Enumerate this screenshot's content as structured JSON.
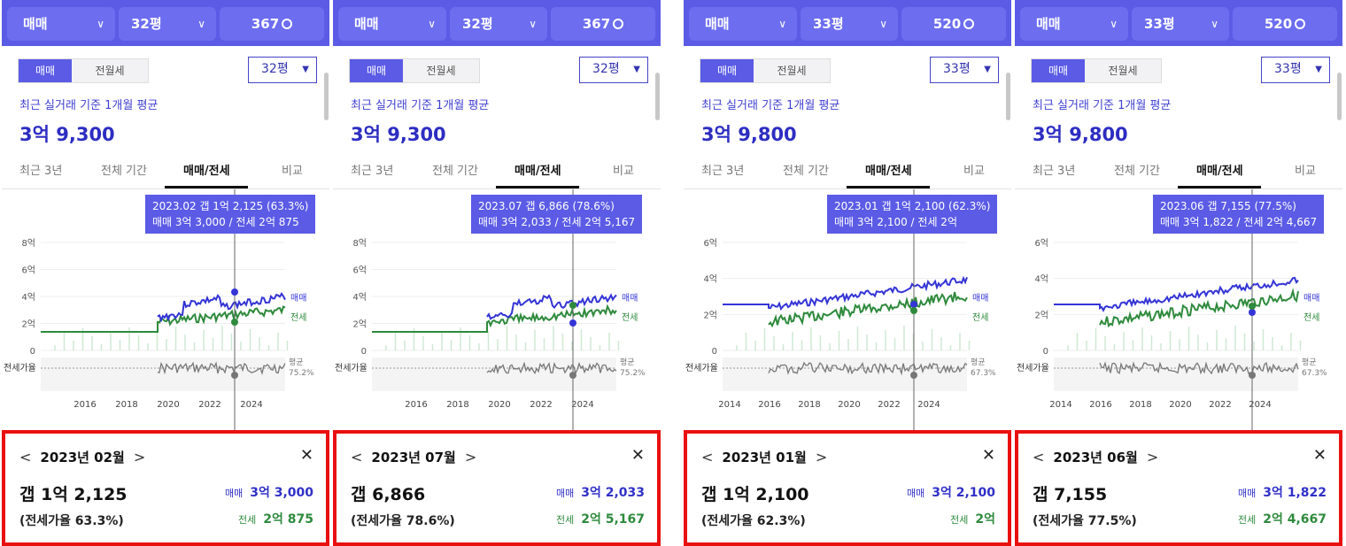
{
  "colors": {
    "accent": "#5b5be6",
    "sale_line": "#3434d6",
    "rent_line": "#2e8a3c",
    "ratio_line": "#777777",
    "highlight_border": "#e8110f"
  },
  "icons": {
    "dropdown": "chevron-down-icon",
    "search": "search-icon",
    "prev": "chevron-left-icon",
    "next": "chevron-right-icon",
    "close": "close-icon"
  },
  "panels": [
    {
      "topbar": {
        "type": "매매",
        "size": "32평",
        "count": "367"
      },
      "toggle": {
        "active": "매매",
        "inactive": "전월세"
      },
      "size_select": "32평",
      "avg_label": "최근 실거래 기준 1개월 평균",
      "avg_value": "3억 9,300",
      "tabs": [
        "최근 3년",
        "전체 기간",
        "매매/전세",
        "비교"
      ],
      "tooltip": {
        "line1": "2023.02  갭 1억 2,125 (63.3%)",
        "line2": "매매 3억 3,000 / 전세 2억 875"
      },
      "chart": {
        "y_labels": [
          "8억",
          "6억",
          "4억",
          "2억",
          "0"
        ],
        "x_labels": [
          "2016",
          "2018",
          "2020",
          "2022",
          "2024"
        ],
        "sale_label": "매매",
        "rent_label": "전세",
        "ratio_label": "전세가율",
        "avg_label": "평균",
        "avg_ratio": "75.2%"
      },
      "card": {
        "month": "2023년 02월",
        "gap": "갭 1억 2,125",
        "ratio": "(전세가율 63.3%)",
        "sale_key": "매매",
        "sale_val": "3억 3,000",
        "rent_key": "전세",
        "rent_val": "2억 875"
      }
    },
    {
      "topbar": {
        "type": "매매",
        "size": "32평",
        "count": "367"
      },
      "toggle": {
        "active": "매매",
        "inactive": "전월세"
      },
      "size_select": "32평",
      "avg_label": "최근 실거래 기준 1개월 평균",
      "avg_value": "3억 9,300",
      "tabs": [
        "최근 3년",
        "전체 기간",
        "매매/전세",
        "비교"
      ],
      "tooltip": {
        "line1": "2023.07  갭 6,866 (78.6%)",
        "line2": "매매 3억 2,033 / 전세 2억 5,167"
      },
      "chart": {
        "y_labels": [
          "8억",
          "6억",
          "4억",
          "2억",
          "0"
        ],
        "x_labels": [
          "2016",
          "2018",
          "2020",
          "2022",
          "2024"
        ],
        "sale_label": "매매",
        "rent_label": "전세",
        "ratio_label": "전세가율",
        "avg_label": "평균",
        "avg_ratio": "75.2%"
      },
      "card": {
        "month": "2023년 07월",
        "gap": "갭 6,866",
        "ratio": "(전세가율 78.6%)",
        "sale_key": "매매",
        "sale_val": "3억 2,033",
        "rent_key": "전세",
        "rent_val": "2억 5,167"
      }
    },
    {
      "topbar": {
        "type": "매매",
        "size": "33평",
        "count": "520"
      },
      "toggle": {
        "active": "매매",
        "inactive": "전월세"
      },
      "size_select": "33평",
      "avg_label": "최근 실거래 기준 1개월 평균",
      "avg_value": "3억 9,800",
      "tabs": [
        "최근 3년",
        "전체 기간",
        "매매/전세",
        "비교"
      ],
      "tooltip": {
        "line1": "2023.01  갭 1억 2,100 (62.3%)",
        "line2": "매매 3억 2,100 / 전세 2억"
      },
      "chart": {
        "y_labels": [
          "6억",
          "4억",
          "2억",
          "0"
        ],
        "x_labels": [
          "2014",
          "2016",
          "2018",
          "2020",
          "2022",
          "2024"
        ],
        "sale_label": "매매",
        "rent_label": "전세",
        "ratio_label": "전세가율",
        "avg_label": "평균",
        "avg_ratio": "67.3%"
      },
      "card": {
        "month": "2023년 01월",
        "gap": "갭 1억 2,100",
        "ratio": "(전세가율 62.3%)",
        "sale_key": "매매",
        "sale_val": "3억 2,100",
        "rent_key": "전세",
        "rent_val": "2억"
      }
    },
    {
      "topbar": {
        "type": "매매",
        "size": "33평",
        "count": "520"
      },
      "toggle": {
        "active": "매매",
        "inactive": "전월세"
      },
      "size_select": "33평",
      "avg_label": "최근 실거래 기준 1개월 평균",
      "avg_value": "3억 9,800",
      "tabs": [
        "최근 3년",
        "전체 기간",
        "매매/전세",
        "비교"
      ],
      "tooltip": {
        "line1": "2023.06  갭 7,155 (77.5%)",
        "line2": "매매 3억 1,822 / 전세 2억 4,667"
      },
      "chart": {
        "y_labels": [
          "6억",
          "4억",
          "2억",
          "0"
        ],
        "x_labels": [
          "2014",
          "2016",
          "2018",
          "2020",
          "2022",
          "2024"
        ],
        "sale_label": "매매",
        "rent_label": "전세",
        "ratio_label": "전세가율",
        "avg_label": "평균",
        "avg_ratio": "67.3%"
      },
      "card": {
        "month": "2023년 06월",
        "gap": "갭 7,155",
        "ratio": "(전세가율 77.5%)",
        "sale_key": "매매",
        "sale_val": "3억 1,822",
        "rent_key": "전세",
        "rent_val": "2억 4,667"
      }
    }
  ]
}
